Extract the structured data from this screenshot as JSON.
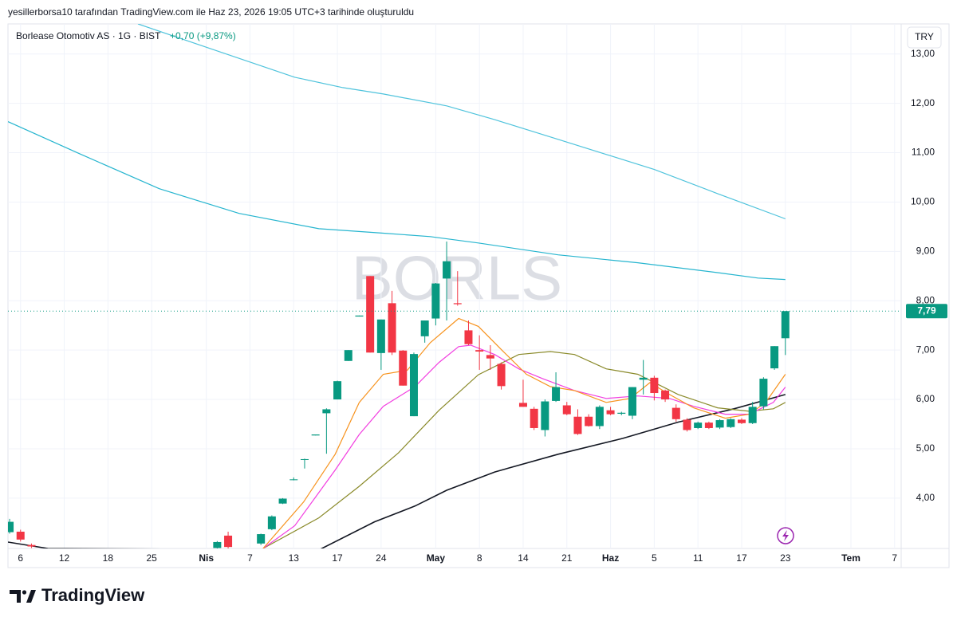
{
  "chart_data": {
    "type": "candlestick",
    "caption": "yesillerborsa10 tarafından TradingView.com ile Haz 23, 2026 19:05 UTC+3 tarihinde oluşturuldu",
    "title": "Borlease Otomotiv AS · 1G · BIST",
    "change": "+0,70 (+9,87%)",
    "currency": "TRY",
    "watermark": "BORLS",
    "brand": "TradingView",
    "up_color": "#089981",
    "down_color": "#f23645",
    "grid": true,
    "xlim": [
      -0.15,
      81.6
    ],
    "ylim": [
      2.98,
      13.61
    ],
    "xticks": [
      {
        "value": 1,
        "label": "6"
      },
      {
        "value": 5,
        "label": "12"
      },
      {
        "value": 9,
        "label": "18"
      },
      {
        "value": 13,
        "label": "25"
      },
      {
        "value": 18,
        "label": "Nis"
      },
      {
        "value": 22,
        "label": "7"
      },
      {
        "value": 26,
        "label": "13"
      },
      {
        "value": 30,
        "label": "17"
      },
      {
        "value": 34,
        "label": "24"
      },
      {
        "value": 39,
        "label": "May"
      },
      {
        "value": 43,
        "label": "8"
      },
      {
        "value": 47,
        "label": "14"
      },
      {
        "value": 51,
        "label": "21"
      },
      {
        "value": 55,
        "label": "Haz"
      },
      {
        "value": 59,
        "label": "5"
      },
      {
        "value": 63,
        "label": "11"
      },
      {
        "value": 67,
        "label": "17"
      },
      {
        "value": 71,
        "label": "23"
      },
      {
        "value": 77,
        "label": "Tem"
      },
      {
        "value": 81,
        "label": "7"
      }
    ],
    "yticks": [
      {
        "value": 4,
        "label": "4,00"
      },
      {
        "value": 5,
        "label": "5,00"
      },
      {
        "value": 6,
        "label": "6,00"
      },
      {
        "value": 7,
        "label": "7,00"
      },
      {
        "value": 8,
        "label": "8,00"
      },
      {
        "value": 9,
        "label": "9,00"
      },
      {
        "value": 10,
        "label": "10,00"
      },
      {
        "value": 11,
        "label": "11,00"
      },
      {
        "value": 12,
        "label": "12,00"
      },
      {
        "value": 13,
        "label": "13,00"
      }
    ],
    "last_price": {
      "value": 7.79,
      "label": "7,79"
    },
    "x": [
      0,
      1,
      2,
      19,
      20,
      23,
      24,
      25,
      26,
      27,
      28,
      29,
      30,
      31,
      32,
      33,
      34,
      35,
      36,
      37,
      38,
      39,
      40,
      41,
      42,
      43,
      44,
      45,
      47,
      48,
      49,
      50,
      51,
      52,
      53,
      54,
      55,
      56,
      57,
      58,
      59,
      60,
      61,
      62,
      63,
      64,
      65,
      66,
      67,
      68,
      69,
      70,
      71
    ],
    "open": [
      3.31,
      3.32,
      3.05,
      2.99,
      3.24,
      3.08,
      3.37,
      3.89,
      4.37,
      4.78,
      5.27,
      5.72,
      6.0,
      6.78,
      7.68,
      8.5,
      6.94,
      7.95,
      6.99,
      5.66,
      7.28,
      7.64,
      8.45,
      7.95,
      7.4,
      7.0,
      6.9,
      6.72,
      5.93,
      5.81,
      5.38,
      5.97,
      5.88,
      5.65,
      5.65,
      5.46,
      5.78,
      5.71,
      5.67,
      6.4,
      6.44,
      6.18,
      5.83,
      5.59,
      5.42,
      5.53,
      5.43,
      5.44,
      5.59,
      5.52,
      5.86,
      6.63,
      7.24
    ],
    "high": [
      3.58,
      3.36,
      3.08,
      3.13,
      3.32,
      3.28,
      3.65,
      4.0,
      4.42,
      4.8,
      5.29,
      5.82,
      6.38,
      7.0,
      7.7,
      8.5,
      7.62,
      8.2,
      7.0,
      6.95,
      7.6,
      8.36,
      9.2,
      8.6,
      7.6,
      7.3,
      7.1,
      6.75,
      6.4,
      5.85,
      6.0,
      6.55,
      5.95,
      5.8,
      5.7,
      5.88,
      5.85,
      5.75,
      6.25,
      6.8,
      6.48,
      6.2,
      5.9,
      5.62,
      5.55,
      5.55,
      5.6,
      5.62,
      5.62,
      5.95,
      6.45,
      7.08,
      7.79
    ],
    "low": [
      3.28,
      3.12,
      2.99,
      2.95,
      2.98,
      3.05,
      3.35,
      3.88,
      4.36,
      4.6,
      5.27,
      4.9,
      6.0,
      6.78,
      7.68,
      6.95,
      6.6,
      6.9,
      6.28,
      5.66,
      7.15,
      7.5,
      7.6,
      7.9,
      7.1,
      6.6,
      6.6,
      6.2,
      5.85,
      5.38,
      5.25,
      5.95,
      5.68,
      5.28,
      5.45,
      5.4,
      5.68,
      5.68,
      5.6,
      6.1,
      5.98,
      5.95,
      5.55,
      5.35,
      5.4,
      5.4,
      5.4,
      5.42,
      5.5,
      5.5,
      5.8,
      6.6,
      6.9
    ],
    "close": [
      3.52,
      3.16,
      3.02,
      3.11,
      3.01,
      3.27,
      3.63,
      3.99,
      4.38,
      4.79,
      5.29,
      5.8,
      6.37,
      7.0,
      7.7,
      6.95,
      7.62,
      6.95,
      6.28,
      6.92,
      7.6,
      8.35,
      8.8,
      7.93,
      7.12,
      6.97,
      6.83,
      6.27,
      5.85,
      5.42,
      5.96,
      6.25,
      5.7,
      5.3,
      5.46,
      5.85,
      5.7,
      5.73,
      6.25,
      6.44,
      6.13,
      6.0,
      5.6,
      5.38,
      5.53,
      5.42,
      5.58,
      5.6,
      5.52,
      5.85,
      6.42,
      7.08,
      7.79
    ],
    "series": [
      {
        "color": "#4fc3dc",
        "x": [
          11.75,
          18.1,
          26.1,
          30.5,
          34.2,
          40,
          44.4,
          50.2,
          59,
          64.8,
          71
        ],
        "values": [
          13.61,
          13.13,
          12.53,
          12.32,
          12.19,
          11.95,
          11.67,
          11.27,
          10.66,
          10.17,
          9.66
        ]
      },
      {
        "color": "#26b5cf",
        "x": [
          -0.15,
          6.4,
          13.7,
          21,
          28.3,
          34.2,
          38.5,
          42.9,
          50.2,
          57.5,
          64.8,
          68.5,
          71
        ],
        "values": [
          11.63,
          10.98,
          10.27,
          9.77,
          9.46,
          9.37,
          9.3,
          9.17,
          8.93,
          8.77,
          8.57,
          8.46,
          8.43
        ]
      },
      {
        "color": "#131722",
        "x": [
          -0.15,
          3.5,
          28.3,
          33.4,
          37.1,
          40,
          44.4,
          50.2,
          56.1,
          61.2,
          66.3,
          71
        ],
        "values": [
          3.11,
          2.98,
          2.95,
          3.52,
          3.84,
          4.16,
          4.53,
          4.89,
          5.21,
          5.54,
          5.81,
          6.1
        ]
      },
      {
        "color": "#8a8a2a",
        "x": [
          23.2,
          28.3,
          32,
          35.6,
          39.3,
          42.9,
          46.6,
          49.5,
          51.7,
          54.6,
          57.5,
          61.2,
          64.8,
          67.7,
          69.9,
          71
        ],
        "values": [
          2.98,
          3.6,
          4.24,
          4.92,
          5.78,
          6.5,
          6.91,
          6.97,
          6.91,
          6.62,
          6.51,
          6.1,
          5.83,
          5.76,
          5.81,
          5.94
        ]
      },
      {
        "color": "#f23ee0",
        "x": [
          23.2,
          26.1,
          29.8,
          32,
          34.2,
          37.1,
          39.3,
          41.1,
          42.2,
          44.4,
          46.6,
          48.8,
          51.7,
          54.6,
          57.5,
          60.4,
          62.6,
          65.5,
          67.7,
          69.9,
          71
        ],
        "values": [
          2.98,
          3.44,
          4.57,
          5.29,
          5.86,
          6.26,
          6.75,
          7.07,
          7.1,
          6.91,
          6.62,
          6.42,
          6.18,
          6.02,
          6.07,
          6.02,
          5.86,
          5.7,
          5.7,
          5.94,
          6.25
        ]
      },
      {
        "color": "#f7931e",
        "x": [
          23.2,
          26.9,
          29.8,
          32,
          34.2,
          36.4,
          38.5,
          41.1,
          42.9,
          45.1,
          47.3,
          49.5,
          51.7,
          54.6,
          56.8,
          58.6,
          60.4,
          62.6,
          65.5,
          67.7,
          69.2,
          71
        ],
        "values": [
          2.98,
          3.92,
          4.89,
          5.94,
          6.51,
          6.59,
          7.15,
          7.64,
          7.48,
          6.99,
          6.51,
          6.26,
          6.18,
          5.94,
          6.02,
          6.34,
          6.1,
          5.83,
          5.62,
          5.7,
          5.94,
          6.51
        ]
      }
    ]
  }
}
